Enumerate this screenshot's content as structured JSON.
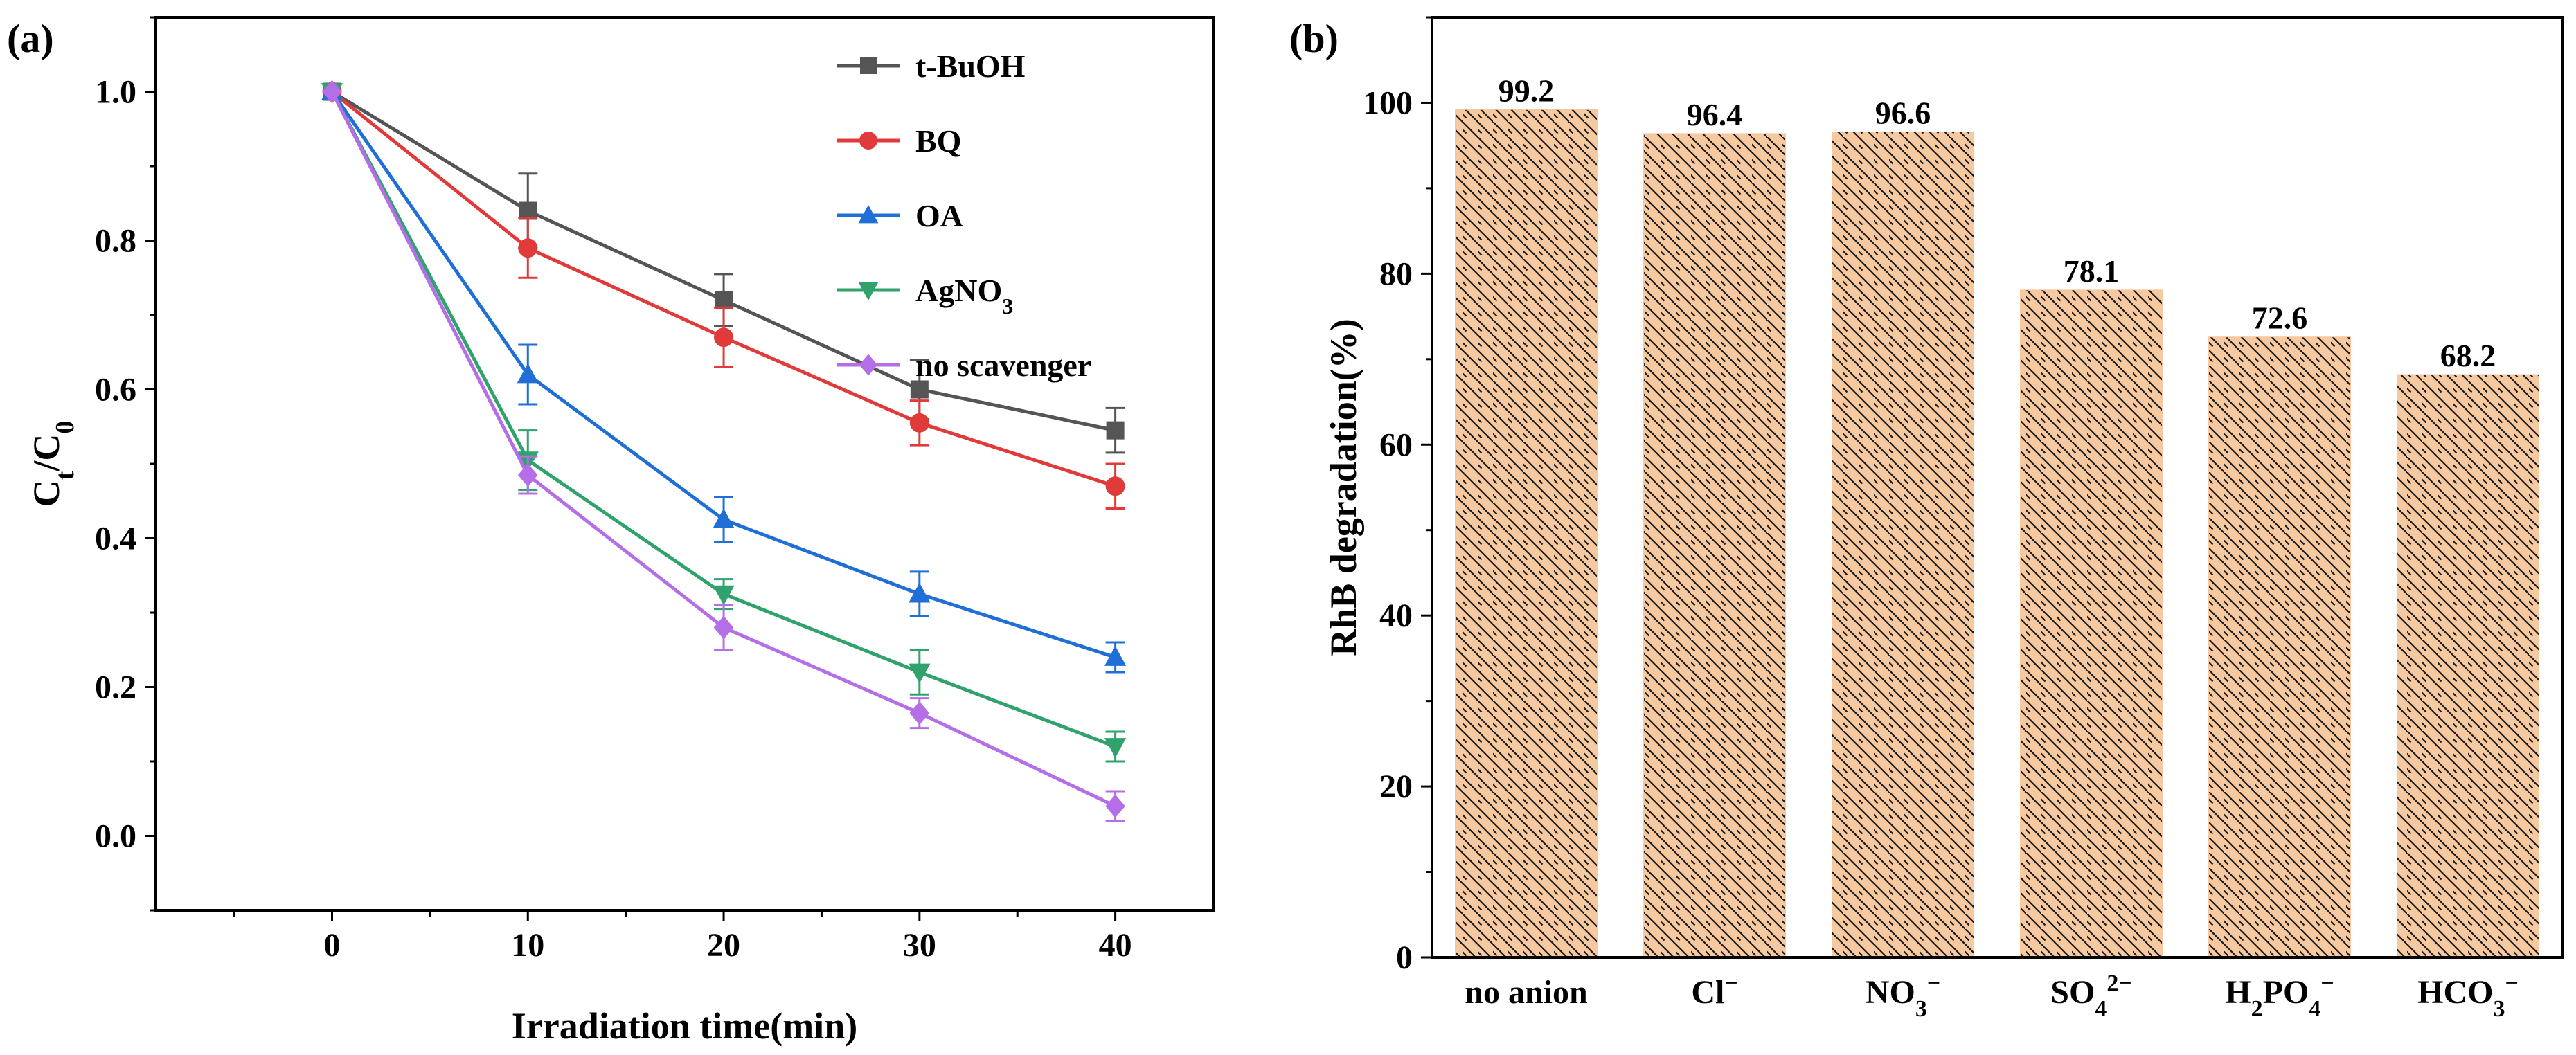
{
  "figure": {
    "panel_a_label": "(a)",
    "panel_b_label": "(b)"
  },
  "chart_data": [
    {
      "type": "line",
      "panel": "(a)",
      "xlabel": "Irradiation time(min)",
      "ylabel_main": "C",
      "ylabel_sub1": "t",
      "ylabel_mid": "/C",
      "ylabel_sub2": "0",
      "xlim": [
        -9,
        45
      ],
      "ylim": [
        -0.1,
        1.1
      ],
      "x_ticks": [
        0,
        10,
        20,
        30,
        40
      ],
      "x_tick_labels": [
        "0",
        "10",
        "20",
        "30",
        "40"
      ],
      "y_ticks": [
        0.0,
        0.2,
        0.4,
        0.6,
        0.8,
        1.0
      ],
      "y_tick_labels": [
        "0.0",
        "0.2",
        "0.4",
        "0.6",
        "0.8",
        "1.0"
      ],
      "x": [
        0,
        10,
        20,
        30,
        40
      ],
      "legend_position": "top-right",
      "series": [
        {
          "name": "t-BuOH",
          "marker": "square",
          "color": "#555555",
          "values": [
            1.0,
            0.84,
            0.72,
            0.6,
            0.545
          ],
          "errors": [
            0,
            0.05,
            0.035,
            0.04,
            0.03
          ]
        },
        {
          "name": "BQ",
          "marker": "circle",
          "color": "#e03a3a",
          "values": [
            1.0,
            0.79,
            0.67,
            0.555,
            0.47
          ],
          "errors": [
            0,
            0.04,
            0.04,
            0.03,
            0.03
          ]
        },
        {
          "name": "OA",
          "marker": "triangle-up",
          "color": "#1f6fd6",
          "values": [
            1.0,
            0.62,
            0.425,
            0.325,
            0.24
          ],
          "errors": [
            0,
            0.04,
            0.03,
            0.03,
            0.02
          ]
        },
        {
          "name": "AgNO",
          "name_sub": "3",
          "marker": "triangle-down",
          "color": "#2fa36b",
          "values": [
            1.0,
            0.505,
            0.325,
            0.22,
            0.12
          ],
          "errors": [
            0,
            0.04,
            0.02,
            0.03,
            0.02
          ]
        },
        {
          "name": "no scavenger",
          "marker": "diamond",
          "color": "#b46ee8",
          "values": [
            1.0,
            0.485,
            0.28,
            0.165,
            0.04
          ],
          "errors": [
            0,
            0.025,
            0.03,
            0.02,
            0.02
          ]
        }
      ]
    },
    {
      "type": "bar",
      "panel": "(b)",
      "xlabel": "",
      "ylabel": "RhB degradation(%)",
      "ylim": [
        0,
        110
      ],
      "y_ticks": [
        0,
        20,
        40,
        60,
        80,
        100
      ],
      "y_tick_labels": [
        "0",
        "20",
        "40",
        "60",
        "80",
        "100"
      ],
      "bar_color": "#f6c9a0",
      "hatch_color": "#1a1a1a",
      "categories": [
        {
          "base": "no anion",
          "sub": "",
          "mid": "",
          "sup": ""
        },
        {
          "base": "Cl",
          "sub": "",
          "mid": "",
          "sup": "−"
        },
        {
          "base": "NO",
          "sub": "3",
          "mid": "",
          "sup": "−"
        },
        {
          "base": "SO",
          "sub": "4",
          "mid": "",
          "sup": "2−"
        },
        {
          "base": "H",
          "sub": "2",
          "mid": "PO",
          "sub2": "4",
          "sup": "−"
        },
        {
          "base": "HCO",
          "sub": "3",
          "mid": "",
          "sup": "−"
        }
      ],
      "values": [
        99.2,
        96.4,
        96.6,
        78.1,
        72.6,
        68.2
      ],
      "data_labels": [
        "99.2",
        "96.4",
        "96.6",
        "78.1",
        "72.6",
        "68.2"
      ]
    }
  ]
}
